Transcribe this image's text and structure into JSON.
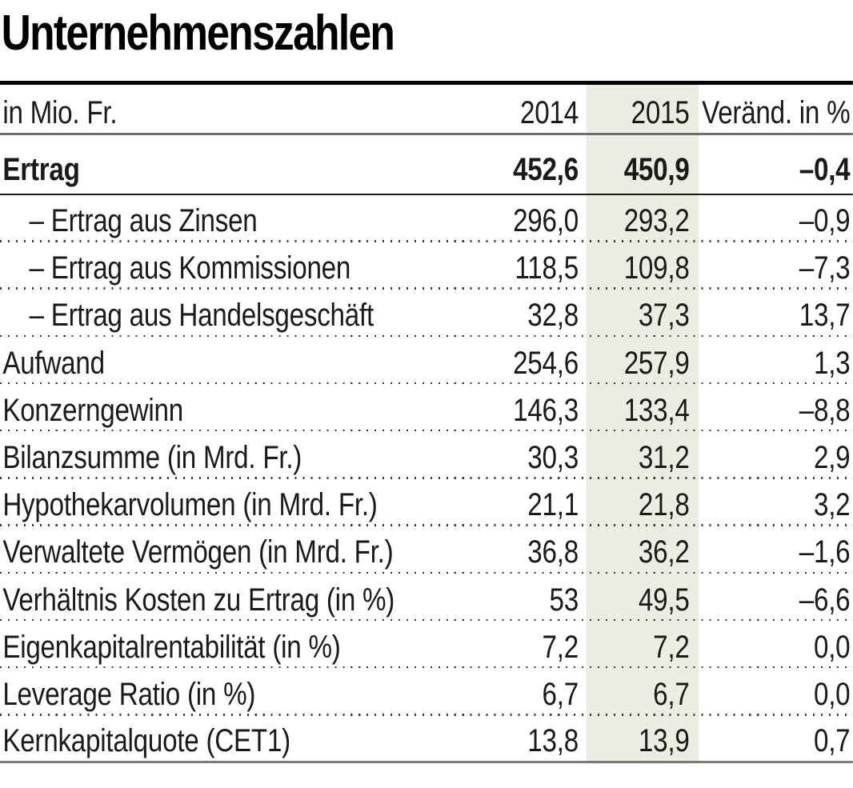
{
  "title": "Unternehmenszahlen",
  "colors": {
    "highlight_column": "#edece3",
    "top_rule": "#000000",
    "header_rule": "#6e6e6e",
    "summary_rule": "#1b1b1b",
    "bottom_rule": "#7b7b7b",
    "text": "#1a1a1a"
  },
  "table": {
    "unit_label": "in Mio. Fr.",
    "col_2014": "2014",
    "col_2015": "2015",
    "col_change": "Veränd. in %",
    "rows": [
      {
        "label": "Ertrag",
        "v2014": "452,6",
        "v2015": "450,9",
        "change": "–0,4",
        "bold": true,
        "indent": false
      },
      {
        "label": "– Ertrag aus Zinsen",
        "v2014": "296,0",
        "v2015": "293,2",
        "change": "–0,9",
        "bold": false,
        "indent": true
      },
      {
        "label": "– Ertrag aus Kommissionen",
        "v2014": "118,5",
        "v2015": "109,8",
        "change": "–7,3",
        "bold": false,
        "indent": true
      },
      {
        "label": "– Ertrag aus Handelsgeschäft",
        "v2014": "32,8",
        "v2015": "37,3",
        "change": "13,7",
        "bold": false,
        "indent": true
      },
      {
        "label": "Aufwand",
        "v2014": "254,6",
        "v2015": "257,9",
        "change": "1,3",
        "bold": false,
        "indent": false
      },
      {
        "label": "Konzerngewinn",
        "v2014": "146,3",
        "v2015": "133,4",
        "change": "–8,8",
        "bold": false,
        "indent": false
      },
      {
        "label": "Bilanzsumme (in Mrd. Fr.)",
        "v2014": "30,3",
        "v2015": "31,2",
        "change": "2,9",
        "bold": false,
        "indent": false
      },
      {
        "label": "Hypothekarvolumen (in Mrd. Fr.)",
        "v2014": "21,1",
        "v2015": "21,8",
        "change": "3,2",
        "bold": false,
        "indent": false
      },
      {
        "label": "Verwaltete Vermögen (in Mrd. Fr.)",
        "v2014": "36,8",
        "v2015": "36,2",
        "change": "–1,6",
        "bold": false,
        "indent": false
      },
      {
        "label": "Verhältnis Kosten zu Ertrag (in %)",
        "v2014": "53",
        "v2015": "49,5",
        "change": "–6,6",
        "bold": false,
        "indent": false
      },
      {
        "label": "Eigenkapitalrentabilität (in %)",
        "v2014": "7,2",
        "v2015": "7,2",
        "change": "0,0",
        "bold": false,
        "indent": false
      },
      {
        "label": "Leverage Ratio (in %)",
        "v2014": "6,7",
        "v2015": "6,7",
        "change": "0,0",
        "bold": false,
        "indent": false
      },
      {
        "label": "Kernkapitalquote (CET1)",
        "v2014": "13,8",
        "v2015": "13,9",
        "change": "0,7",
        "bold": false,
        "indent": false
      }
    ]
  },
  "chart_data": {
    "type": "table",
    "title": "Unternehmenszahlen",
    "unit": "in Mio. Fr.",
    "columns": [
      "2014",
      "2015",
      "Veränd. in %"
    ],
    "highlighted_column": "2015",
    "rows": [
      {
        "label": "Ertrag",
        "y2014": 452.6,
        "y2015": 450.9,
        "change_pct": -0.4
      },
      {
        "label": "Ertrag aus Zinsen",
        "y2014": 296.0,
        "y2015": 293.2,
        "change_pct": -0.9
      },
      {
        "label": "Ertrag aus Kommissionen",
        "y2014": 118.5,
        "y2015": 109.8,
        "change_pct": -7.3
      },
      {
        "label": "Ertrag aus Handelsgeschäft",
        "y2014": 32.8,
        "y2015": 37.3,
        "change_pct": 13.7
      },
      {
        "label": "Aufwand",
        "y2014": 254.6,
        "y2015": 257.9,
        "change_pct": 1.3
      },
      {
        "label": "Konzerngewinn",
        "y2014": 146.3,
        "y2015": 133.4,
        "change_pct": -8.8
      },
      {
        "label": "Bilanzsumme (in Mrd. Fr.)",
        "y2014": 30.3,
        "y2015": 31.2,
        "change_pct": 2.9
      },
      {
        "label": "Hypothekarvolumen (in Mrd. Fr.)",
        "y2014": 21.1,
        "y2015": 21.8,
        "change_pct": 3.2
      },
      {
        "label": "Verwaltete Vermögen (in Mrd. Fr.)",
        "y2014": 36.8,
        "y2015": 36.2,
        "change_pct": -1.6
      },
      {
        "label": "Verhältnis Kosten zu Ertrag (in %)",
        "y2014": 53,
        "y2015": 49.5,
        "change_pct": -6.6
      },
      {
        "label": "Eigenkapitalrentabilität (in %)",
        "y2014": 7.2,
        "y2015": 7.2,
        "change_pct": 0.0
      },
      {
        "label": "Leverage Ratio (in %)",
        "y2014": 6.7,
        "y2015": 6.7,
        "change_pct": 0.0
      },
      {
        "label": "Kernkapitalquote (CET1)",
        "y2014": 13.8,
        "y2015": 13.9,
        "change_pct": 0.7
      }
    ]
  }
}
